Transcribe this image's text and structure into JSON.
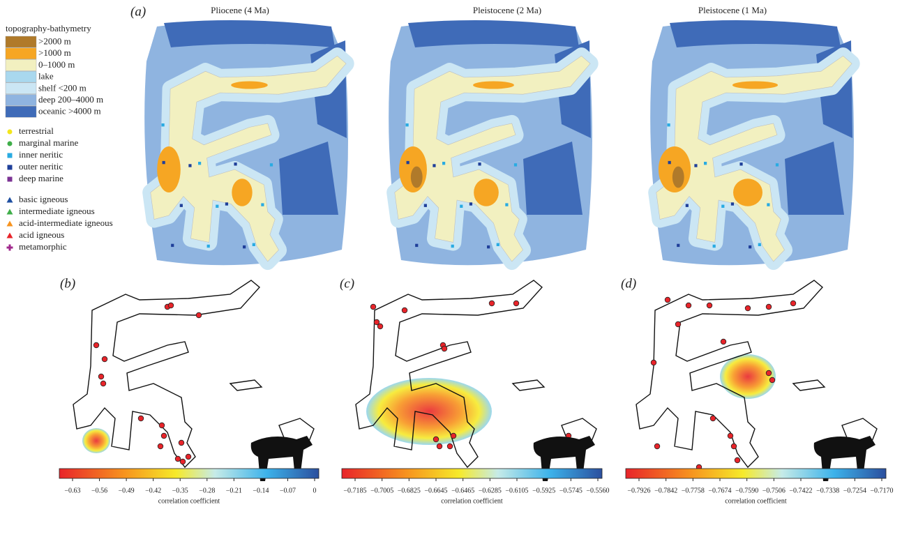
{
  "panel_labels": [
    "(a)",
    "(b)",
    "(c)",
    "(d)"
  ],
  "map_titles": [
    "Pliocene (4 Ma)",
    "Pleistocene (2 Ma)",
    "Pleistocene (1 Ma)"
  ],
  "legend": {
    "title": "topography-bathymetry",
    "topography": [
      ">2000 m",
      ">1000 m",
      "0–1000 m",
      "lake",
      "shelf <200 m",
      "deep 200–4000 m",
      "oceanic >4000 m"
    ],
    "sample_types": [
      "terrestrial",
      "marginal marine",
      "inner neritic",
      "outer neritic",
      "deep marine"
    ],
    "rock_types": [
      "basic igneous",
      "intermediate igneous",
      "acid-intermediate igneous",
      "acid igneous",
      "metamorphic"
    ]
  },
  "colorbars": [
    {
      "ticks": [
        "−0.63",
        "−0.56",
        "−0.49",
        "−0.42",
        "−0.35",
        "−0.28",
        "−0.21",
        "−0.14",
        "−0.07",
        "0"
      ],
      "label": "correlation coefficient"
    },
    {
      "ticks": [
        "−0.7185",
        "−0.7005",
        "−0.6825",
        "−0.6645",
        "−0.6465",
        "−0.6285",
        "−0.6105",
        "−0.5925",
        "−0.5745",
        "−0.5560"
      ],
      "label": "correlation coefficient"
    },
    {
      "ticks": [
        "−0.7926",
        "−0.7842",
        "−0.7758",
        "−0.7674",
        "−0.7590",
        "−0.7506",
        "−0.7422",
        "−0.7338",
        "−0.7254",
        "−0.7170"
      ],
      "label": "correlation coefficient"
    }
  ]
}
